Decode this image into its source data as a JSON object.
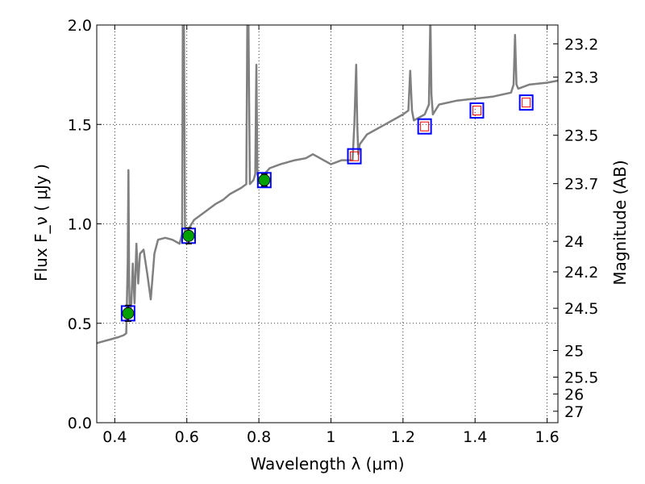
{
  "chart_data": {
    "type": "line",
    "xlabel": "Wavelength  λ (μm)",
    "ylabel_left": "Flux  F_ν  ( μJy )",
    "ylabel_right": "Magnitude (AB)",
    "xlim": [
      0.35,
      1.63
    ],
    "ylim": [
      0.0,
      2.0
    ],
    "grid": true,
    "x_ticks": [
      0.4,
      0.6,
      0.8,
      1.0,
      1.2,
      1.4,
      1.6
    ],
    "x_tick_labels": [
      "0.4",
      "0.6",
      "0.8",
      "1",
      "1.2",
      "1.4",
      "1.6"
    ],
    "y_ticks": [
      0.0,
      0.5,
      1.0,
      1.5,
      2.0
    ],
    "y_tick_labels": [
      "0.0",
      "0.5",
      "1.0",
      "1.5",
      "2.0"
    ],
    "right_ticks": [
      "23.2",
      "23.3",
      "23.5",
      "23.7",
      "24",
      "24.2",
      "24.5",
      "25",
      "25.5",
      "26",
      "27"
    ],
    "series": [
      {
        "kind": "spectrum",
        "color": "#808080",
        "x": [
          0.35,
          0.37,
          0.39,
          0.41,
          0.425,
          0.432,
          0.436,
          0.438,
          0.44,
          0.442,
          0.446,
          0.45,
          0.455,
          0.46,
          0.465,
          0.47,
          0.48,
          0.49,
          0.5,
          0.51,
          0.52,
          0.54,
          0.56,
          0.58,
          0.587,
          0.589,
          0.592,
          0.595,
          0.6,
          0.62,
          0.65,
          0.68,
          0.7,
          0.72,
          0.75,
          0.765,
          0.768,
          0.771,
          0.775,
          0.785,
          0.79,
          0.793,
          0.796,
          0.8,
          0.83,
          0.86,
          0.9,
          0.93,
          0.95,
          1.0,
          1.03,
          1.06,
          1.065,
          1.07,
          1.073,
          1.076,
          1.08,
          1.1,
          1.15,
          1.2,
          1.215,
          1.22,
          1.225,
          1.23,
          1.26,
          1.272,
          1.276,
          1.279,
          1.283,
          1.3,
          1.35,
          1.4,
          1.45,
          1.5,
          1.507,
          1.511,
          1.515,
          1.52,
          1.55,
          1.6,
          1.63
        ],
        "y": [
          0.4,
          0.41,
          0.42,
          0.43,
          0.44,
          0.45,
          0.8,
          1.27,
          0.7,
          0.55,
          0.6,
          0.8,
          0.6,
          0.9,
          0.7,
          0.85,
          0.87,
          0.75,
          0.62,
          0.85,
          0.92,
          0.93,
          0.92,
          0.9,
          0.95,
          2.05,
          2.05,
          0.95,
          0.96,
          1.02,
          1.06,
          1.1,
          1.12,
          1.15,
          1.18,
          1.2,
          2.05,
          2.05,
          1.2,
          1.22,
          1.25,
          1.8,
          1.25,
          1.22,
          1.28,
          1.3,
          1.32,
          1.33,
          1.35,
          1.3,
          1.32,
          1.32,
          1.5,
          1.8,
          1.5,
          1.35,
          1.4,
          1.45,
          1.5,
          1.55,
          1.57,
          1.77,
          1.57,
          1.52,
          1.55,
          1.6,
          2.05,
          1.65,
          1.55,
          1.6,
          1.62,
          1.63,
          1.64,
          1.66,
          1.7,
          1.95,
          1.7,
          1.68,
          1.7,
          1.71,
          1.72
        ]
      },
      {
        "kind": "observed",
        "name": "",
        "x": [
          0.437,
          0.605,
          0.815
        ],
        "y": [
          0.55,
          0.94,
          1.22
        ],
        "yerr": [
          0.04,
          0.04,
          0.03
        ],
        "color": "#00a000",
        "edge": "#0000ff"
      },
      {
        "kind": "model",
        "name": "",
        "x": [
          1.065,
          1.26,
          1.405,
          1.542
        ],
        "y": [
          1.34,
          1.49,
          1.57,
          1.61
        ],
        "color": "#ff0000",
        "edge": "#0000ff"
      }
    ]
  }
}
